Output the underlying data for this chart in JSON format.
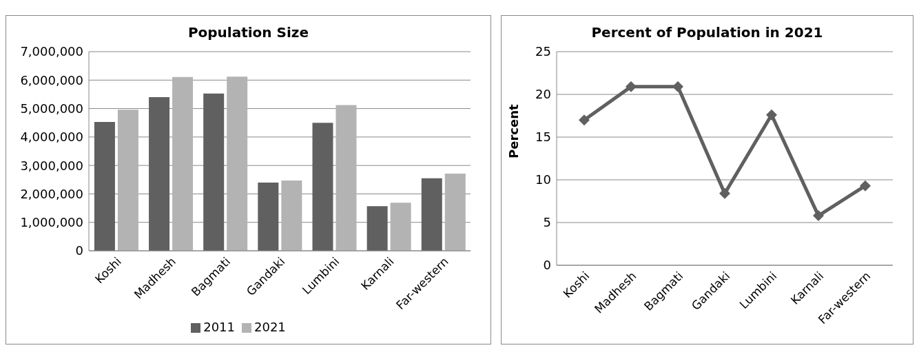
{
  "chart_data": [
    {
      "type": "bar",
      "title": "Population Size",
      "categories": [
        "Koshi",
        "Madhesh",
        "Bagmati",
        "Gandaki",
        "Lumbini",
        "Karnali",
        "Far-western"
      ],
      "series": [
        {
          "name": "2011",
          "color": "#606060",
          "values": [
            4530000,
            5400000,
            5530000,
            2400000,
            4500000,
            1570000,
            2550000
          ]
        },
        {
          "name": "2021",
          "color": "#b3b3b3",
          "values": [
            4960000,
            6110000,
            6120000,
            2470000,
            5120000,
            1690000,
            2710000
          ]
        }
      ],
      "ylim": [
        0,
        7000000
      ],
      "yticks": [
        0,
        {
          "value": 1000000,
          "label": "1,000,000"
        },
        {
          "value": 2000000,
          "label": "2,000,000"
        },
        {
          "value": 3000000,
          "label": "3,000,000"
        },
        {
          "value": 4000000,
          "label": "4,000,000"
        },
        {
          "value": 5000000,
          "label": "5,000,000"
        },
        {
          "value": 6000000,
          "label": "6,000,000"
        },
        {
          "value": 7000000,
          "label": "7,000,000"
        }
      ],
      "grid": "y",
      "legend": "bottom"
    },
    {
      "type": "line",
      "title": "Percent of Population in 2021",
      "ylabel": "Percent",
      "categories": [
        "Koshi",
        "Madhesh",
        "Bagmati",
        "Gandaki",
        "Lumbini",
        "Karnali",
        "Far-western"
      ],
      "series": [
        {
          "color": "#606060",
          "values": [
            17.0,
            20.9,
            20.9,
            8.4,
            17.6,
            5.8,
            9.3
          ]
        }
      ],
      "ylim": [
        0,
        25
      ],
      "yticks": [
        0,
        5,
        10,
        15,
        20,
        25
      ],
      "grid": "y",
      "marker": "diamond",
      "line_style": "solid"
    }
  ]
}
